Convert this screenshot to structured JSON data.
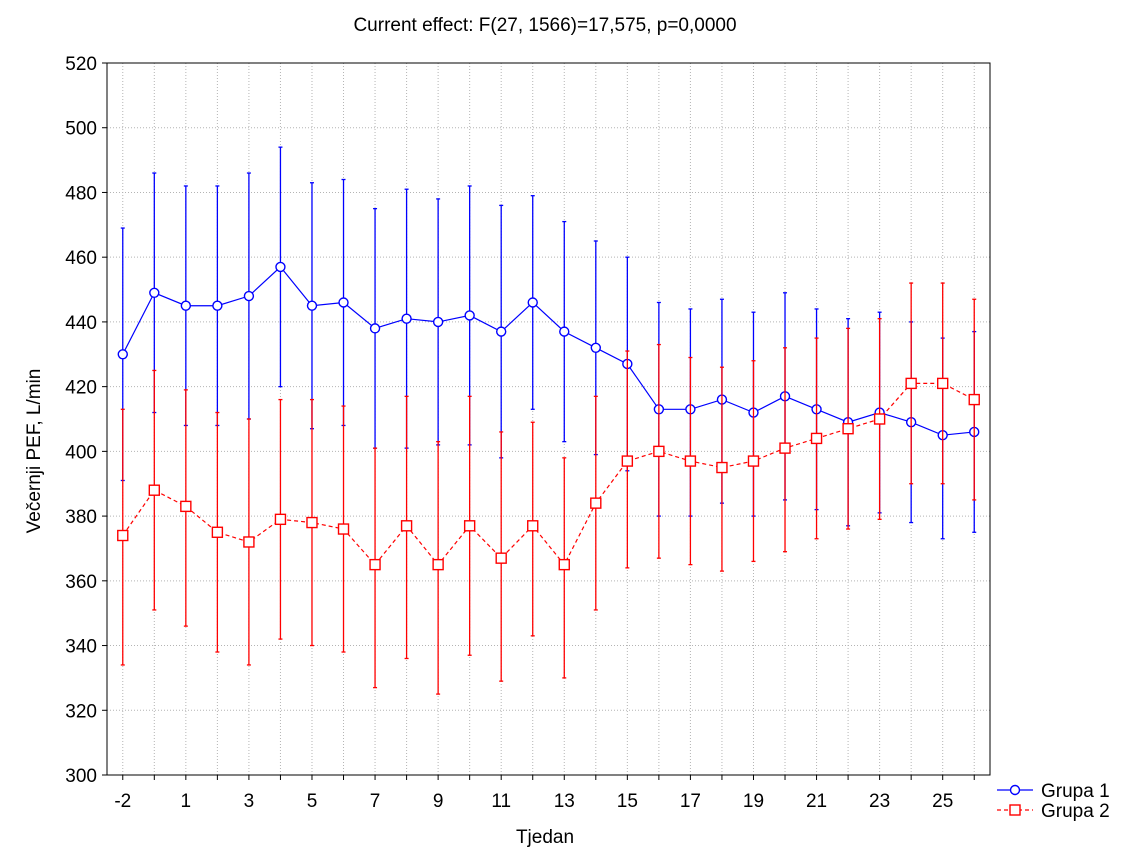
{
  "chart_data": {
    "type": "line",
    "title": "Current effect: F(27, 1566)=17,575, p=0,0000",
    "xlabel": "Tjedan",
    "ylabel": "Večernji PEF, L/min",
    "x": [
      -2,
      -1,
      1,
      2,
      3,
      4,
      5,
      6,
      7,
      8,
      9,
      10,
      11,
      12,
      13,
      14,
      15,
      16,
      17,
      18,
      19,
      20,
      21,
      22,
      23,
      24,
      25,
      26
    ],
    "x_tick_labels": [
      "-2",
      "1",
      "3",
      "5",
      "7",
      "9",
      "11",
      "13",
      "15",
      "17",
      "19",
      "21",
      "23",
      "25"
    ],
    "ylim": [
      300,
      520
    ],
    "y_ticks": [
      300,
      320,
      340,
      360,
      380,
      400,
      420,
      440,
      460,
      480,
      500,
      520
    ],
    "grid": true,
    "legend_position": "bottom-right outside",
    "series": [
      {
        "name": "Grupa 1",
        "color": "#0000ff",
        "marker": "circle",
        "line_style": "solid",
        "values": [
          430,
          449,
          445,
          445,
          448,
          457,
          445,
          446,
          438,
          441,
          440,
          442,
          437,
          446,
          437,
          432,
          427,
          413,
          413,
          416,
          412,
          417,
          413,
          409,
          412,
          409,
          405,
          406
        ],
        "upper": [
          469,
          486,
          482,
          482,
          486,
          494,
          483,
          484,
          475,
          481,
          478,
          482,
          476,
          479,
          471,
          465,
          460,
          446,
          444,
          447,
          443,
          449,
          444,
          441,
          443,
          440,
          435,
          437
        ],
        "lower": [
          391,
          412,
          408,
          408,
          410,
          420,
          407,
          408,
          401,
          401,
          402,
          402,
          398,
          413,
          403,
          399,
          394,
          380,
          380,
          384,
          380,
          385,
          382,
          377,
          381,
          378,
          373,
          375
        ]
      },
      {
        "name": "Grupa 2",
        "color": "#ff0000",
        "marker": "square",
        "line_style": "dashed",
        "values": [
          374,
          388,
          383,
          375,
          372,
          379,
          378,
          376,
          365,
          377,
          365,
          377,
          367,
          377,
          365,
          384,
          397,
          400,
          397,
          395,
          397,
          401,
          404,
          407,
          410,
          421,
          421,
          416
        ],
        "upper": [
          413,
          425,
          419,
          412,
          410,
          416,
          416,
          414,
          401,
          417,
          403,
          417,
          406,
          409,
          398,
          417,
          431,
          433,
          429,
          426,
          428,
          432,
          435,
          438,
          441,
          452,
          452,
          447
        ],
        "lower": [
          334,
          351,
          346,
          338,
          334,
          342,
          340,
          338,
          327,
          336,
          325,
          337,
          329,
          343,
          330,
          351,
          364,
          367,
          365,
          363,
          366,
          369,
          373,
          376,
          379,
          390,
          390,
          385
        ]
      }
    ]
  }
}
